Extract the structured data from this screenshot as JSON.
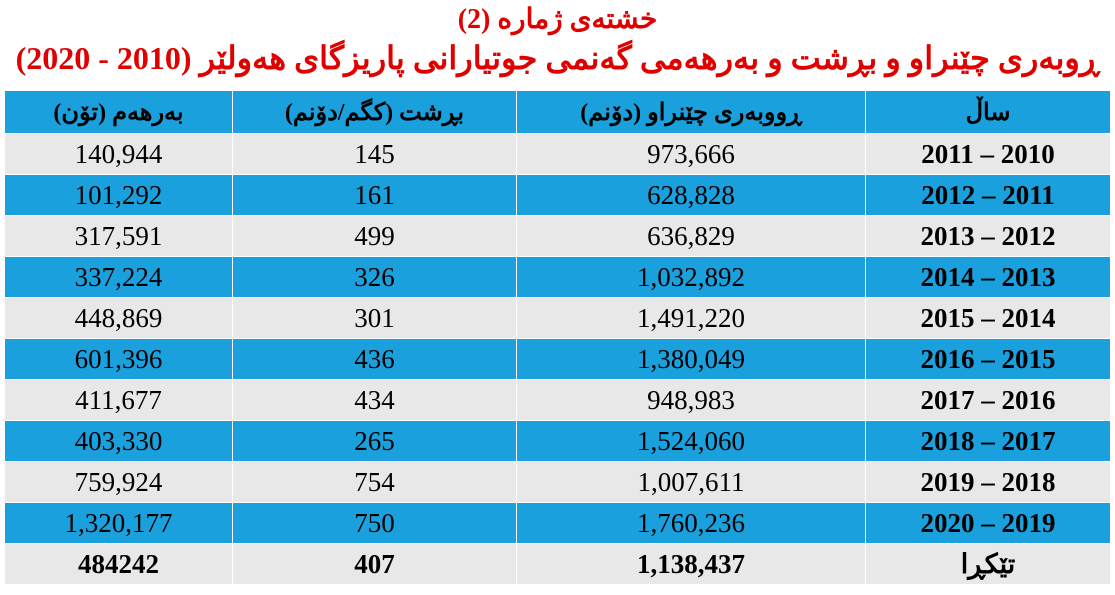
{
  "header": {
    "title": "خشتەی ژمارە (2)",
    "subtitle": "ڕوبەری چێنراو و بڕشت و بەرهەمی گەنمی جوتیارانی پاریزگای هەولێر (2010 - 2020)"
  },
  "table": {
    "columns": [
      "ساڵ",
      "ڕووبەری چێنراو (دۆنم)",
      "بڕشت (کگم/دۆنم)",
      "بەرهەم (تۆن)"
    ],
    "rows": [
      [
        "2011 – 2010",
        "973,666",
        "145",
        "140,944"
      ],
      [
        "2012 – 2011",
        "628,828",
        "161",
        "101,292"
      ],
      [
        "2013 – 2012",
        "636,829",
        "499",
        "317,591"
      ],
      [
        "2014 – 2013",
        "1,032,892",
        "326",
        "337,224"
      ],
      [
        "2015 – 2014",
        "1,491,220",
        "301",
        "448,869"
      ],
      [
        "2016 – 2015",
        "1,380,049",
        "436",
        "601,396"
      ],
      [
        "2017 – 2016",
        "948,983",
        "434",
        "411,677"
      ],
      [
        "2018 – 2017",
        "1,524,060",
        "265",
        "403,330"
      ],
      [
        "2019 – 2018",
        "1,007,611",
        "754",
        "759,924"
      ],
      [
        "2020 – 2019",
        "1,760,236",
        "750",
        "1,320,177"
      ]
    ],
    "total": [
      "تێکڕا",
      "1,138,437",
      "407",
      "484242"
    ]
  }
}
